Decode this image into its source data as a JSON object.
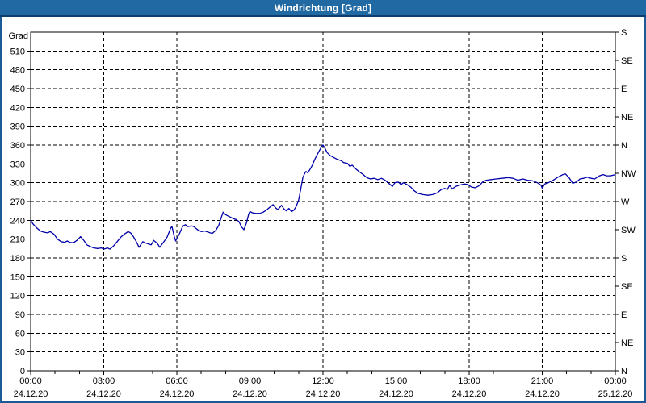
{
  "window": {
    "title": "Windrichtung [Grad]"
  },
  "colors": {
    "titlebar_bg": "#2169A3",
    "titlebar_underline": "#0D3E6D",
    "frame_border": "#1A5A96",
    "panel_bg": "#FFFFFF",
    "axis": "#000000",
    "grid": "#000000",
    "label": "#000000",
    "series_line": "#0000AA"
  },
  "chart_data": {
    "type": "line",
    "title": "Windrichtung [Grad]",
    "ylabel_left": "Grad",
    "ylim": [
      0,
      540
    ],
    "xlim_hours": [
      0,
      24
    ],
    "grid": "dashed",
    "legend": "none",
    "y_left_ticks": [
      0,
      30,
      60,
      90,
      120,
      150,
      180,
      210,
      240,
      270,
      300,
      330,
      360,
      390,
      420,
      450,
      480,
      510
    ],
    "y_right_ticks": [
      {
        "deg": 540,
        "label": "S"
      },
      {
        "deg": 495,
        "label": "SE"
      },
      {
        "deg": 450,
        "label": "E"
      },
      {
        "deg": 405,
        "label": "NE"
      },
      {
        "deg": 360,
        "label": "N"
      },
      {
        "deg": 315,
        "label": "NW"
      },
      {
        "deg": 270,
        "label": "W"
      },
      {
        "deg": 225,
        "label": "SW"
      },
      {
        "deg": 180,
        "label": "S"
      },
      {
        "deg": 135,
        "label": "SE"
      },
      {
        "deg": 90,
        "label": "E"
      },
      {
        "deg": 45,
        "label": "NE"
      },
      {
        "deg": 0,
        "label": "N"
      }
    ],
    "x_ticks": [
      {
        "hour": 0,
        "time": "00:00",
        "date": "24.12.20"
      },
      {
        "hour": 3,
        "time": "03:00",
        "date": "24.12.20"
      },
      {
        "hour": 6,
        "time": "06:00",
        "date": "24.12.20"
      },
      {
        "hour": 9,
        "time": "09:00",
        "date": "24.12.20"
      },
      {
        "hour": 12,
        "time": "12:00",
        "date": "24.12.20"
      },
      {
        "hour": 15,
        "time": "15:00",
        "date": "24.12.20"
      },
      {
        "hour": 18,
        "time": "18:00",
        "date": "24.12.20"
      },
      {
        "hour": 21,
        "time": "21:00",
        "date": "24.12.20"
      },
      {
        "hour": 24,
        "time": "00:00",
        "date": "25.12.20"
      }
    ],
    "x_minor_step_hours": 1,
    "series": [
      {
        "name": "Windrichtung",
        "unit": "Grad",
        "points": [
          [
            0,
            240
          ],
          [
            0.1,
            234
          ],
          [
            0.25,
            228
          ],
          [
            0.4,
            223
          ],
          [
            0.55,
            221
          ],
          [
            0.7,
            220
          ],
          [
            0.8,
            222
          ],
          [
            0.95,
            218
          ],
          [
            1.1,
            210
          ],
          [
            1.25,
            206
          ],
          [
            1.4,
            205
          ],
          [
            1.5,
            207
          ],
          [
            1.6,
            205
          ],
          [
            1.75,
            204
          ],
          [
            1.9,
            208
          ],
          [
            2.05,
            214
          ],
          [
            2.2,
            207
          ],
          [
            2.3,
            201
          ],
          [
            2.45,
            198
          ],
          [
            2.6,
            196
          ],
          [
            2.75,
            195
          ],
          [
            2.9,
            196
          ],
          [
            3.0,
            194
          ],
          [
            3.15,
            196
          ],
          [
            3.25,
            194
          ],
          [
            3.4,
            199
          ],
          [
            3.55,
            206
          ],
          [
            3.7,
            213
          ],
          [
            3.85,
            218
          ],
          [
            4.0,
            222
          ],
          [
            4.1,
            220
          ],
          [
            4.2,
            215
          ],
          [
            4.35,
            205
          ],
          [
            4.45,
            197
          ],
          [
            4.6,
            206
          ],
          [
            4.7,
            204
          ],
          [
            4.85,
            202
          ],
          [
            4.95,
            201
          ],
          [
            5.05,
            208
          ],
          [
            5.2,
            203
          ],
          [
            5.3,
            197
          ],
          [
            5.45,
            205
          ],
          [
            5.6,
            213
          ],
          [
            5.75,
            228
          ],
          [
            5.8,
            230
          ],
          [
            5.88,
            216
          ],
          [
            5.95,
            207
          ],
          [
            6.1,
            218
          ],
          [
            6.25,
            231
          ],
          [
            6.35,
            233
          ],
          [
            6.45,
            230
          ],
          [
            6.6,
            231
          ],
          [
            6.7,
            230
          ],
          [
            6.85,
            225
          ],
          [
            7.0,
            222
          ],
          [
            7.15,
            223
          ],
          [
            7.3,
            221
          ],
          [
            7.45,
            219
          ],
          [
            7.6,
            224
          ],
          [
            7.72,
            232
          ],
          [
            7.82,
            244
          ],
          [
            7.9,
            253
          ],
          [
            8.0,
            249
          ],
          [
            8.15,
            246
          ],
          [
            8.3,
            243
          ],
          [
            8.45,
            241
          ],
          [
            8.55,
            238
          ],
          [
            8.65,
            230
          ],
          [
            8.75,
            225
          ],
          [
            8.85,
            235
          ],
          [
            8.95,
            250
          ],
          [
            9.0,
            254
          ],
          [
            9.1,
            252
          ],
          [
            9.25,
            251
          ],
          [
            9.4,
            251
          ],
          [
            9.55,
            253
          ],
          [
            9.7,
            257
          ],
          [
            9.85,
            262
          ],
          [
            9.95,
            265
          ],
          [
            10.05,
            260
          ],
          [
            10.15,
            257
          ],
          [
            10.3,
            264
          ],
          [
            10.4,
            258
          ],
          [
            10.5,
            255
          ],
          [
            10.6,
            259
          ],
          [
            10.7,
            254
          ],
          [
            10.8,
            256
          ],
          [
            10.9,
            262
          ],
          [
            11.0,
            272
          ],
          [
            11.08,
            288
          ],
          [
            11.17,
            308
          ],
          [
            11.25,
            315
          ],
          [
            11.3,
            318
          ],
          [
            11.36,
            316
          ],
          [
            11.45,
            320
          ],
          [
            11.55,
            327
          ],
          [
            11.65,
            336
          ],
          [
            11.75,
            344
          ],
          [
            11.85,
            351
          ],
          [
            11.95,
            358
          ],
          [
            12.0,
            360
          ],
          [
            12.08,
            355
          ],
          [
            12.17,
            348
          ],
          [
            12.3,
            343
          ],
          [
            12.45,
            340
          ],
          [
            12.6,
            337
          ],
          [
            12.75,
            335
          ],
          [
            12.85,
            332
          ],
          [
            13.0,
            331
          ],
          [
            13.1,
            326
          ],
          [
            13.2,
            328
          ],
          [
            13.35,
            322
          ],
          [
            13.5,
            317
          ],
          [
            13.65,
            313
          ],
          [
            13.8,
            308
          ],
          [
            13.95,
            306
          ],
          [
            14.1,
            307
          ],
          [
            14.25,
            305
          ],
          [
            14.4,
            307
          ],
          [
            14.55,
            304
          ],
          [
            14.7,
            299
          ],
          [
            14.85,
            294
          ],
          [
            14.95,
            300
          ],
          [
            15.1,
            301
          ],
          [
            15.2,
            297
          ],
          [
            15.3,
            300
          ],
          [
            15.45,
            297
          ],
          [
            15.6,
            293
          ],
          [
            15.75,
            287
          ],
          [
            15.9,
            283
          ],
          [
            16.1,
            281
          ],
          [
            16.3,
            280
          ],
          [
            16.5,
            281
          ],
          [
            16.7,
            284
          ],
          [
            16.85,
            289
          ],
          [
            17.0,
            291
          ],
          [
            17.1,
            289
          ],
          [
            17.2,
            296
          ],
          [
            17.3,
            290
          ],
          [
            17.45,
            294
          ],
          [
            17.6,
            296
          ],
          [
            17.8,
            298
          ],
          [
            17.95,
            297
          ],
          [
            18.1,
            293
          ],
          [
            18.25,
            292
          ],
          [
            18.4,
            295
          ],
          [
            18.55,
            301
          ],
          [
            18.7,
            304
          ],
          [
            18.9,
            305
          ],
          [
            19.1,
            306
          ],
          [
            19.35,
            307
          ],
          [
            19.6,
            308
          ],
          [
            19.8,
            307
          ],
          [
            20.0,
            304
          ],
          [
            20.2,
            306
          ],
          [
            20.4,
            304
          ],
          [
            20.6,
            303
          ],
          [
            20.8,
            300
          ],
          [
            20.95,
            296
          ],
          [
            21.0,
            291
          ],
          [
            21.1,
            298
          ],
          [
            21.25,
            300
          ],
          [
            21.45,
            304
          ],
          [
            21.65,
            309
          ],
          [
            21.85,
            313
          ],
          [
            21.95,
            314
          ],
          [
            22.1,
            308
          ],
          [
            22.25,
            299
          ],
          [
            22.4,
            301
          ],
          [
            22.55,
            306
          ],
          [
            22.7,
            307
          ],
          [
            22.85,
            309
          ],
          [
            23.0,
            307
          ],
          [
            23.15,
            306
          ],
          [
            23.35,
            311
          ],
          [
            23.5,
            313
          ],
          [
            23.65,
            311
          ],
          [
            23.8,
            311
          ],
          [
            24.0,
            313
          ]
        ]
      }
    ]
  }
}
